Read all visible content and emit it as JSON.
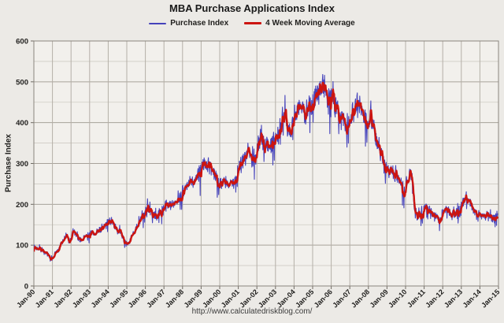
{
  "chart_data": {
    "type": "line",
    "title": "MBA Purchase Applications Index",
    "y_axis_title": "Purchase Index",
    "footer": "http://www.calculatedriskblog.com/",
    "x_start_year": 1990,
    "x_end_year": 2015,
    "ylim": [
      0,
      600
    ],
    "y_major_step": 100,
    "y_minor_step": 50,
    "grid": true,
    "legend_position": "top-center",
    "y_ticks": [
      0,
      100,
      200,
      300,
      400,
      500,
      600
    ],
    "x_tick_labels": [
      "Jan-90",
      "Jan-91",
      "Jan-92",
      "Jan-93",
      "Jan-94",
      "Jan-95",
      "Jan-96",
      "Jan-97",
      "Jan-98",
      "Jan-99",
      "Jan-00",
      "Jan-01",
      "Jan-02",
      "Jan-03",
      "Jan-04",
      "Jan-05",
      "Jan-06",
      "Jan-07",
      "Jan-08",
      "Jan-09",
      "Jan-10",
      "Jan-11",
      "Jan-12",
      "Jan-13",
      "Jan-14",
      "Jan-15"
    ],
    "series": [
      {
        "name": "Purchase Index",
        "color": "#4643bb",
        "stroke_width": 1.1,
        "kind": "weekly_raw",
        "derived_from": "4 Week Moving Average control points plus weekly noise",
        "noise_seed": 7,
        "noise_frac": 0.11,
        "spike_frac": 0.07,
        "holiday_dip_frac": 0.12,
        "weeks_per_year": 52.18
      },
      {
        "name": "4 Week Moving Average",
        "color": "#cc1510",
        "stroke_width": 2.4,
        "kind": "4wk_moving_average",
        "control_points": [
          [
            1990.0,
            96
          ],
          [
            1990.15,
            91
          ],
          [
            1990.3,
            93
          ],
          [
            1990.45,
            88
          ],
          [
            1990.6,
            83
          ],
          [
            1990.72,
            76
          ],
          [
            1990.85,
            70
          ],
          [
            1991.0,
            67
          ],
          [
            1991.15,
            78
          ],
          [
            1991.3,
            92
          ],
          [
            1991.45,
            103
          ],
          [
            1991.6,
            112
          ],
          [
            1991.75,
            122
          ],
          [
            1991.88,
            110
          ],
          [
            1992.0,
            112
          ],
          [
            1992.1,
            136
          ],
          [
            1992.2,
            130
          ],
          [
            1992.35,
            118
          ],
          [
            1992.5,
            113
          ],
          [
            1992.65,
            117
          ],
          [
            1992.8,
            122
          ],
          [
            1992.95,
            126
          ],
          [
            1993.1,
            131
          ],
          [
            1993.25,
            127
          ],
          [
            1993.4,
            132
          ],
          [
            1993.55,
            137
          ],
          [
            1993.7,
            143
          ],
          [
            1993.85,
            150
          ],
          [
            1994.0,
            157
          ],
          [
            1994.12,
            160
          ],
          [
            1994.25,
            153
          ],
          [
            1994.4,
            144
          ],
          [
            1994.55,
            137
          ],
          [
            1994.7,
            127
          ],
          [
            1994.82,
            117
          ],
          [
            1994.95,
            106
          ],
          [
            1995.06,
            100
          ],
          [
            1995.2,
            113
          ],
          [
            1995.35,
            129
          ],
          [
            1995.5,
            143
          ],
          [
            1995.65,
            156
          ],
          [
            1995.8,
            166
          ],
          [
            1995.95,
            176
          ],
          [
            1996.1,
            194
          ],
          [
            1996.2,
            187
          ],
          [
            1996.35,
            177
          ],
          [
            1996.5,
            170
          ],
          [
            1996.65,
            174
          ],
          [
            1996.8,
            180
          ],
          [
            1996.95,
            188
          ],
          [
            1997.1,
            208
          ],
          [
            1997.22,
            196
          ],
          [
            1997.4,
            198
          ],
          [
            1997.55,
            203
          ],
          [
            1997.7,
            209
          ],
          [
            1997.85,
            216
          ],
          [
            1998.0,
            227
          ],
          [
            1998.15,
            236
          ],
          [
            1998.3,
            246
          ],
          [
            1998.45,
            252
          ],
          [
            1998.6,
            257
          ],
          [
            1998.75,
            266
          ],
          [
            1998.9,
            280
          ],
          [
            1999.05,
            294
          ],
          [
            1999.18,
            301
          ],
          [
            1999.35,
            292
          ],
          [
            1999.5,
            288
          ],
          [
            1999.65,
            276
          ],
          [
            1999.8,
            265
          ],
          [
            1999.95,
            257
          ],
          [
            2000.1,
            252
          ],
          [
            2000.3,
            258
          ],
          [
            2000.45,
            244
          ],
          [
            2000.6,
            248
          ],
          [
            2000.75,
            258
          ],
          [
            2000.9,
            272
          ],
          [
            2001.05,
            298
          ],
          [
            2001.2,
            310
          ],
          [
            2001.35,
            318
          ],
          [
            2001.5,
            325
          ],
          [
            2001.62,
            330
          ],
          [
            2001.72,
            302
          ],
          [
            2001.85,
            315
          ],
          [
            2002.0,
            330
          ],
          [
            2002.1,
            348
          ],
          [
            2002.25,
            356
          ],
          [
            2002.4,
            345
          ],
          [
            2002.55,
            352
          ],
          [
            2002.7,
            342
          ],
          [
            2002.85,
            352
          ],
          [
            2003.0,
            362
          ],
          [
            2003.15,
            372
          ],
          [
            2003.3,
            388
          ],
          [
            2003.42,
            415
          ],
          [
            2003.52,
            428
          ],
          [
            2003.62,
            390
          ],
          [
            2003.75,
            380
          ],
          [
            2003.9,
            396
          ],
          [
            2004.05,
            412
          ],
          [
            2004.2,
            432
          ],
          [
            2004.35,
            442
          ],
          [
            2004.5,
            436
          ],
          [
            2004.62,
            405
          ],
          [
            2004.75,
            430
          ],
          [
            2004.9,
            444
          ],
          [
            2005.05,
            455
          ],
          [
            2005.2,
            472
          ],
          [
            2005.35,
            487
          ],
          [
            2005.5,
            495
          ],
          [
            2005.62,
            499
          ],
          [
            2005.75,
            482
          ],
          [
            2005.9,
            470
          ],
          [
            2006.05,
            454
          ],
          [
            2006.2,
            444
          ],
          [
            2006.35,
            430
          ],
          [
            2006.5,
            416
          ],
          [
            2006.65,
            406
          ],
          [
            2006.8,
            399
          ],
          [
            2006.95,
            411
          ],
          [
            2007.1,
            421
          ],
          [
            2007.25,
            437
          ],
          [
            2007.4,
            450
          ],
          [
            2007.55,
            441
          ],
          [
            2007.7,
            426
          ],
          [
            2007.85,
            414
          ],
          [
            2008.0,
            406
          ],
          [
            2008.12,
            414
          ],
          [
            2008.25,
            388
          ],
          [
            2008.4,
            362
          ],
          [
            2008.55,
            340
          ],
          [
            2008.7,
            318
          ],
          [
            2008.85,
            300
          ],
          [
            2009.0,
            288
          ],
          [
            2009.15,
            277
          ],
          [
            2009.3,
            281
          ],
          [
            2009.45,
            269
          ],
          [
            2009.6,
            264
          ],
          [
            2009.75,
            257
          ],
          [
            2009.88,
            226
          ],
          [
            2010.0,
            240
          ],
          [
            2010.15,
            257
          ],
          [
            2010.27,
            291
          ],
          [
            2010.38,
            238
          ],
          [
            2010.48,
            176
          ],
          [
            2010.62,
            169
          ],
          [
            2010.75,
            175
          ],
          [
            2010.9,
            181
          ],
          [
            2011.05,
            194
          ],
          [
            2011.2,
            187
          ],
          [
            2011.35,
            181
          ],
          [
            2011.5,
            177
          ],
          [
            2011.65,
            171
          ],
          [
            2011.8,
            163
          ],
          [
            2011.92,
            161
          ],
          [
            2012.05,
            184
          ],
          [
            2012.2,
            191
          ],
          [
            2012.35,
            183
          ],
          [
            2012.5,
            175
          ],
          [
            2012.65,
            177
          ],
          [
            2012.8,
            184
          ],
          [
            2012.95,
            193
          ],
          [
            2013.1,
            206
          ],
          [
            2013.25,
            216
          ],
          [
            2013.4,
            211
          ],
          [
            2013.55,
            197
          ],
          [
            2013.7,
            189
          ],
          [
            2013.82,
            181
          ],
          [
            2013.95,
            177
          ],
          [
            2014.1,
            169
          ],
          [
            2014.25,
            181
          ],
          [
            2014.4,
            175
          ],
          [
            2014.55,
            169
          ],
          [
            2014.7,
            165
          ],
          [
            2014.85,
            172
          ],
          [
            2014.96,
            177
          ]
        ]
      }
    ],
    "style": {
      "page_bg": "#eceae6",
      "plot_bg": "#f2f0ec",
      "grid_minor": "#cfcbc4",
      "grid_major": "#a7a29a",
      "grid_vertical": "#b4afa7",
      "border": "#8a857e",
      "tick": "#6f6a63",
      "title_color": "#191919",
      "label_color": "#21201e",
      "footer_color": "#3d3d3d"
    }
  }
}
